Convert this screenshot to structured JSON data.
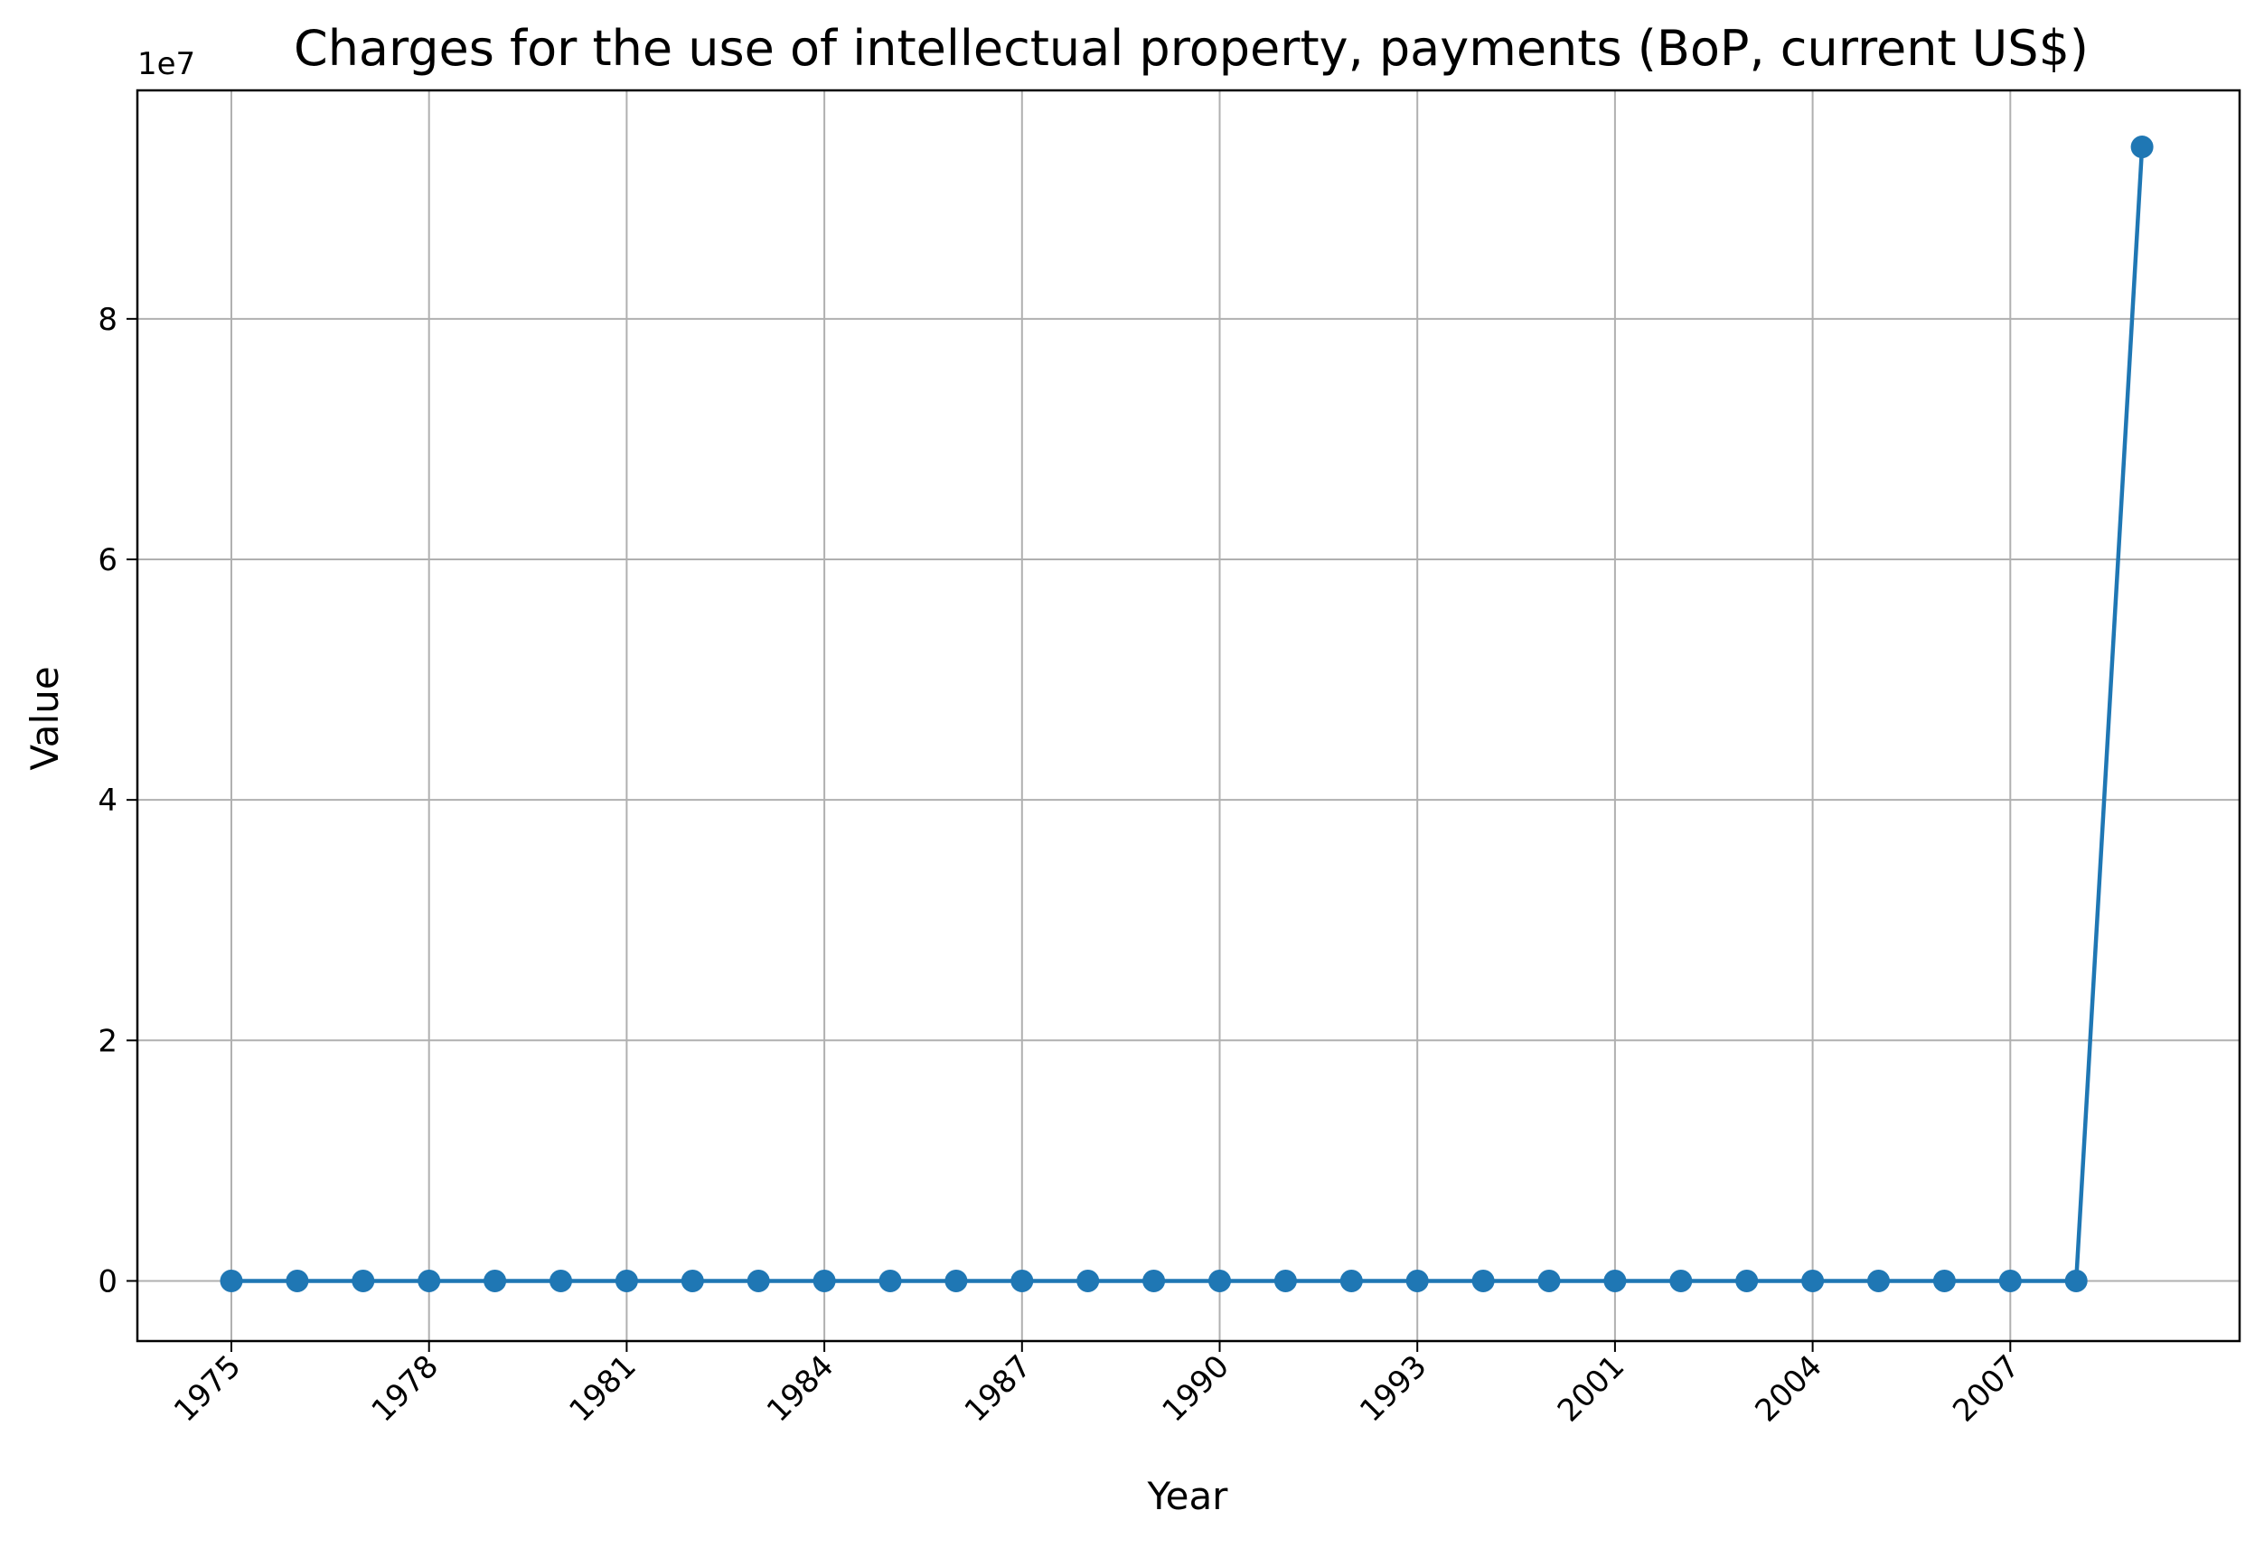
{
  "chart_data": {
    "type": "line",
    "title": "Charges for the use of intellectual property, payments (BoP, current US$)",
    "xlabel": "Year",
    "ylabel": "Value",
    "y_offset_label": "1e7",
    "ylim": [
      -5000000,
      99000000
    ],
    "yticks": [
      0,
      20000000,
      40000000,
      60000000,
      80000000
    ],
    "ytick_labels": [
      "0",
      "2",
      "4",
      "6",
      "8"
    ],
    "categories": [
      "1975",
      "1976",
      "1977",
      "1978",
      "1979",
      "1980",
      "1981",
      "1982",
      "1983",
      "1984",
      "1985",
      "1986",
      "1987",
      "1988",
      "1989",
      "1990",
      "1991",
      "1992",
      "1993",
      "1994",
      "2000",
      "2001",
      "2002",
      "2003",
      "2004",
      "2005",
      "2006",
      "2007",
      "2008",
      "2009"
    ],
    "xtick_labels": [
      "1975",
      "1978",
      "1981",
      "1984",
      "1987",
      "1990",
      "1993",
      "2001",
      "2004",
      "2007"
    ],
    "xtick_indices": [
      0,
      3,
      6,
      9,
      12,
      15,
      18,
      21,
      24,
      27
    ],
    "series": [
      {
        "color": "#1f77b4",
        "values": [
          0,
          0,
          0,
          0,
          0,
          0,
          0,
          0,
          0,
          0,
          0,
          0,
          0,
          0,
          0,
          0,
          0,
          0,
          0,
          0,
          0,
          0,
          0,
          0,
          0,
          0,
          0,
          0,
          0,
          94300000
        ]
      }
    ],
    "grid": true,
    "legend": false
  }
}
